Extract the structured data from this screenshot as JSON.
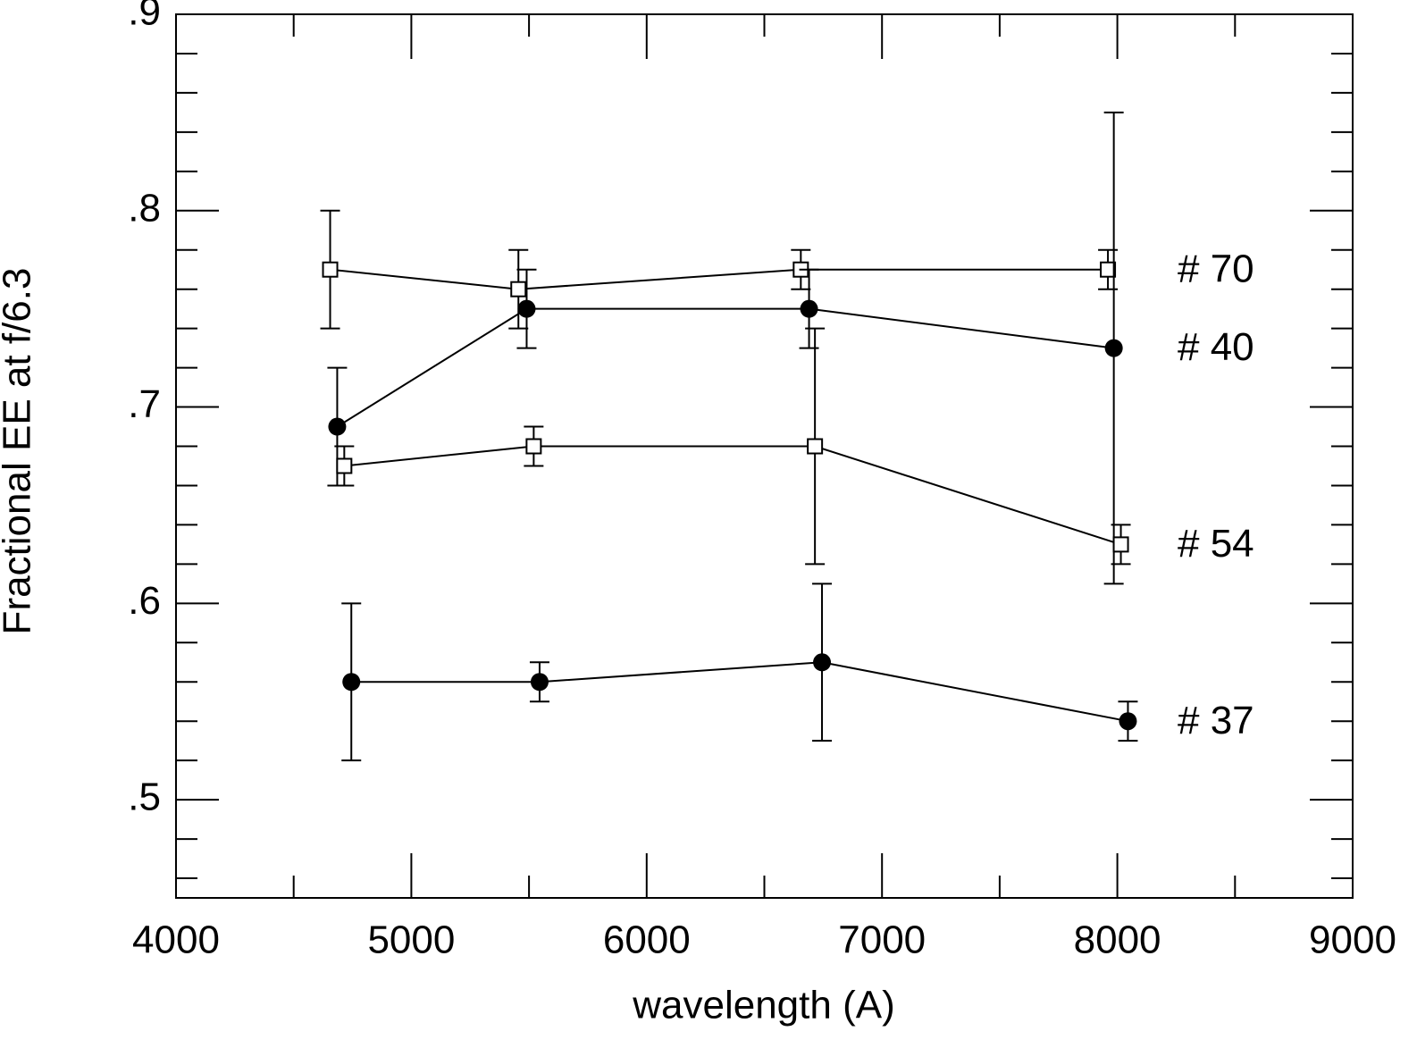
{
  "chart_data": {
    "type": "scatter",
    "xlabel": "wavelength (A)",
    "ylabel": "Fractional EE at f/6.3",
    "xlim": [
      4000,
      9000
    ],
    "ylim": [
      0.45,
      0.9
    ],
    "xticks": [
      4000,
      5000,
      6000,
      7000,
      8000,
      9000
    ],
    "xticks_minor": [
      4500,
      5500,
      6500,
      7500,
      8500
    ],
    "yticks": [
      {
        "value": 0.5,
        "label": ".5"
      },
      {
        "value": 0.6,
        "label": ".6"
      },
      {
        "value": 0.7,
        "label": ".7"
      },
      {
        "value": 0.8,
        "label": ".8"
      },
      {
        "value": 0.9,
        "label": ".9"
      }
    ],
    "yticks_minor": [
      0.46,
      0.48,
      0.52,
      0.54,
      0.56,
      0.58,
      0.62,
      0.64,
      0.66,
      0.68,
      0.72,
      0.74,
      0.76,
      0.78,
      0.82,
      0.84,
      0.86,
      0.88
    ],
    "series": [
      {
        "name": "# 70",
        "marker": "open-square",
        "color": "#000000",
        "x": [
          4655,
          5455,
          6655,
          7960
        ],
        "values": [
          0.77,
          0.76,
          0.77,
          0.77
        ],
        "errors": [
          0.03,
          0.02,
          0.01,
          0.01
        ]
      },
      {
        "name": "# 40",
        "marker": "filled-circle",
        "color": "#000000",
        "x": [
          4685,
          5490,
          6690,
          7985
        ],
        "values": [
          0.69,
          0.75,
          0.75,
          0.73
        ],
        "errors": [
          0.03,
          0.02,
          0.02,
          0.12
        ]
      },
      {
        "name": "# 54",
        "marker": "open-square",
        "color": "#000000",
        "x": [
          4715,
          5520,
          6715,
          8015
        ],
        "values": [
          0.67,
          0.68,
          0.68,
          0.63
        ],
        "errors": [
          0.01,
          0.01,
          0.06,
          0.01
        ]
      },
      {
        "name": "# 37",
        "marker": "filled-circle",
        "color": "#000000",
        "x": [
          4745,
          5545,
          6745,
          8045
        ],
        "values": [
          0.56,
          0.56,
          0.57,
          0.54
        ],
        "errors": [
          0.04,
          0.01,
          0.04,
          0.01
        ]
      }
    ]
  }
}
